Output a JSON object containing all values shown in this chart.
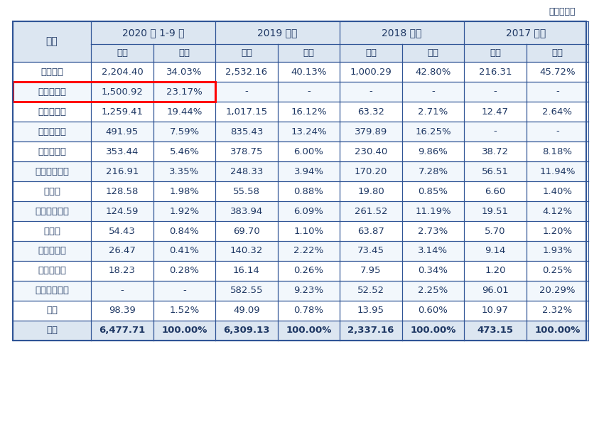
{
  "unit_label": "单位：万元",
  "col_groups": [
    {
      "label": "2020 年 1-9 月",
      "cols": [
        "金额",
        "占比"
      ]
    },
    {
      "label": "2019 年度",
      "cols": [
        "金额",
        "占比"
      ]
    },
    {
      "label": "2018 年度",
      "cols": [
        "金额",
        "占比"
      ]
    },
    {
      "label": "2017 年度",
      "cols": [
        "金额",
        "占比"
      ]
    }
  ],
  "row_header": "项目",
  "rows": [
    {
      "name": "人工成本",
      "vals": [
        "2,204.40",
        "34.03%",
        "2,532.16",
        "40.13%",
        "1,000.29",
        "42.80%",
        "216.31",
        "45.72%"
      ],
      "bold": false,
      "highlight": false
    },
    {
      "name": "专利许可费",
      "vals": [
        "1,500.92",
        "23.17%",
        "-",
        "-",
        "-",
        "-",
        "-",
        "-"
      ],
      "bold": false,
      "highlight": true
    },
    {
      "name": "物流服务费",
      "vals": [
        "1,259.41",
        "19.44%",
        "1,017.15",
        "16.12%",
        "63.32",
        "2.71%",
        "12.47",
        "2.64%"
      ],
      "bold": false,
      "highlight": false
    },
    {
      "name": "质量保证金",
      "vals": [
        "491.95",
        "7.59%",
        "835.43",
        "13.24%",
        "379.89",
        "16.25%",
        "-",
        "-"
      ],
      "bold": false,
      "highlight": false
    },
    {
      "name": "业务宣传费",
      "vals": [
        "353.44",
        "5.46%",
        "378.75",
        "6.00%",
        "230.40",
        "9.86%",
        "38.72",
        "8.18%"
      ],
      "bold": false,
      "highlight": false
    },
    {
      "name": "出借样品推销",
      "vals": [
        "216.91",
        "3.35%",
        "248.33",
        "3.94%",
        "170.20",
        "7.28%",
        "56.51",
        "11.94%"
      ],
      "bold": false,
      "highlight": false
    },
    {
      "name": "租赁费",
      "vals": [
        "128.58",
        "1.98%",
        "55.58",
        "0.88%",
        "19.80",
        "0.85%",
        "6.60",
        "1.40%"
      ],
      "bold": false,
      "highlight": false
    },
    {
      "name": "差旅及交通费",
      "vals": [
        "124.59",
        "1.92%",
        "383.94",
        "6.09%",
        "261.52",
        "11.19%",
        "19.51",
        "4.12%"
      ],
      "bold": false,
      "highlight": false
    },
    {
      "name": "办公费",
      "vals": [
        "54.43",
        "0.84%",
        "69.70",
        "1.10%",
        "63.87",
        "2.73%",
        "5.70",
        "1.20%"
      ],
      "bold": false,
      "highlight": false
    },
    {
      "name": "业务招待费",
      "vals": [
        "26.47",
        "0.41%",
        "140.32",
        "2.22%",
        "73.45",
        "3.14%",
        "9.14",
        "1.93%"
      ],
      "bold": false,
      "highlight": false
    },
    {
      "name": "折旧及摊销",
      "vals": [
        "18.23",
        "0.28%",
        "16.14",
        "0.26%",
        "7.95",
        "0.34%",
        "1.20",
        "0.25%"
      ],
      "bold": false,
      "highlight": false
    },
    {
      "name": "股份支付费用",
      "vals": [
        "-",
        "-",
        "582.55",
        "9.23%",
        "52.52",
        "2.25%",
        "96.01",
        "20.29%"
      ],
      "bold": false,
      "highlight": false
    },
    {
      "name": "其他",
      "vals": [
        "98.39",
        "1.52%",
        "49.09",
        "0.78%",
        "13.95",
        "0.60%",
        "10.97",
        "2.32%"
      ],
      "bold": false,
      "highlight": false
    },
    {
      "name": "合计",
      "vals": [
        "6,477.71",
        "100.00%",
        "6,309.13",
        "100.00%",
        "2,337.16",
        "100.00%",
        "473.15",
        "100.00%"
      ],
      "bold": true,
      "highlight": false
    }
  ],
  "colors": {
    "header_bg": "#dce6f1",
    "subheader_bg": "#dce6f1",
    "row_bg_odd": "#ffffff",
    "row_bg_even": "#f2f7fc",
    "border": "#2f5496",
    "text": "#1f3864",
    "highlight_border": "#ff0000",
    "total_bg": "#dce6f1"
  }
}
